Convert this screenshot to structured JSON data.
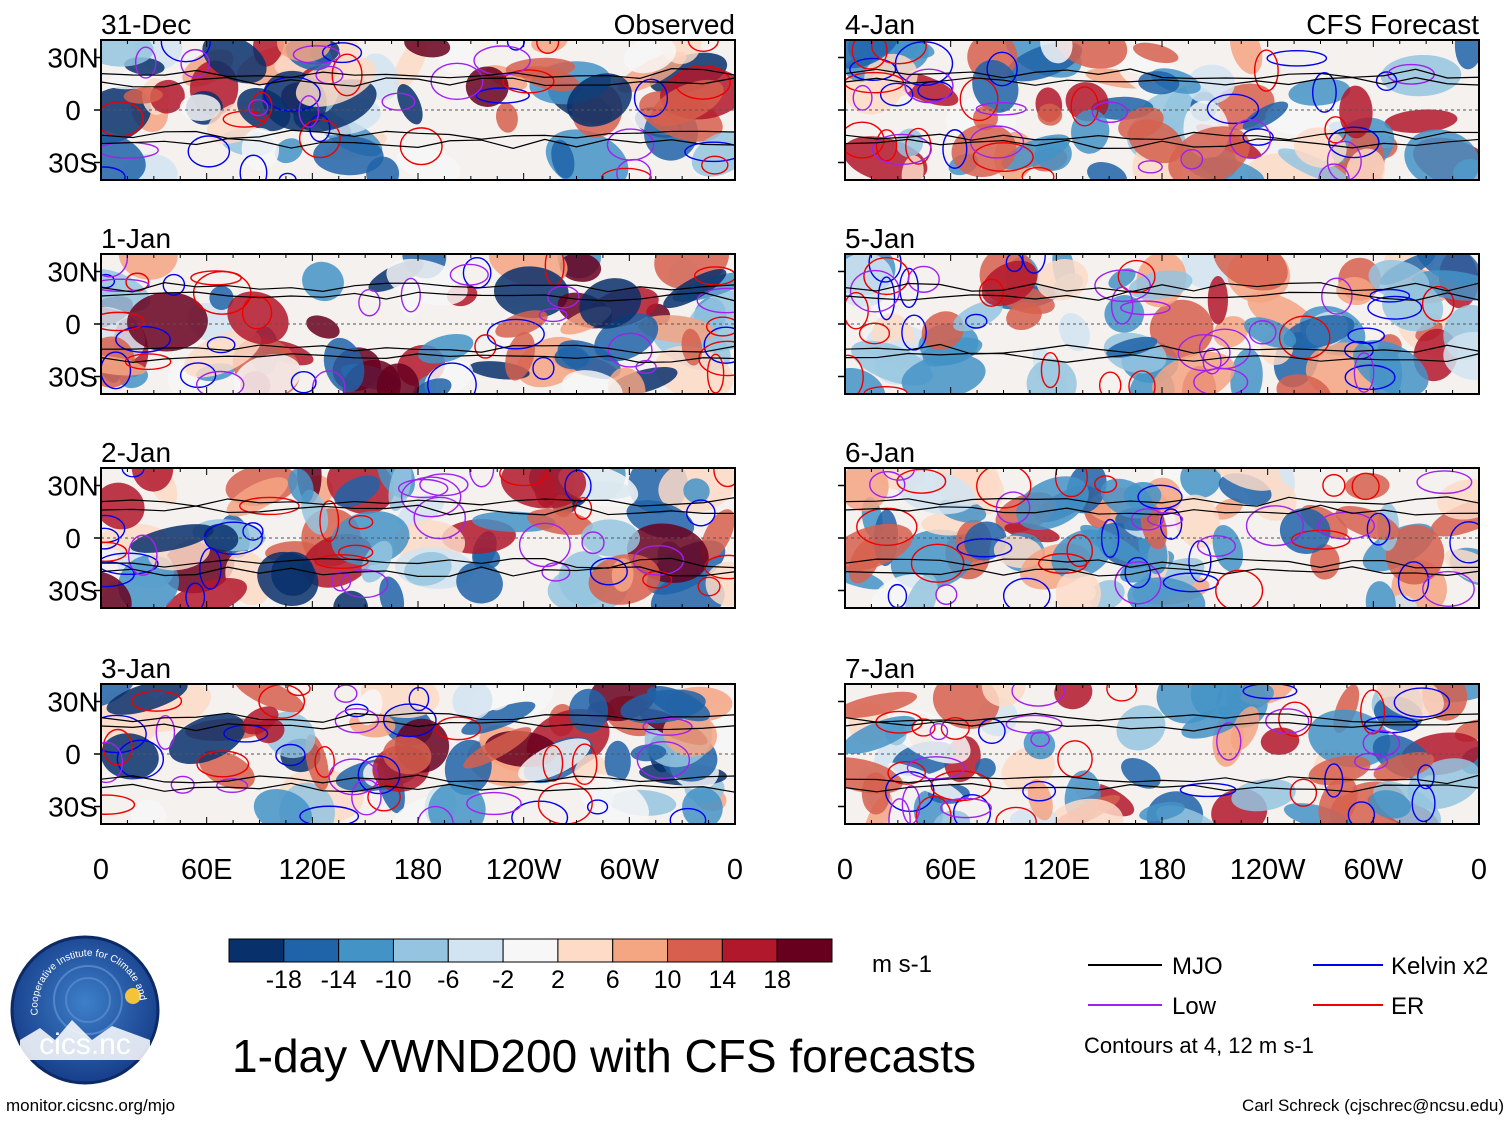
{
  "figure": {
    "title": "1-day VWND200 with CFS forecasts",
    "source_url": "monitor.cicsnc.org/mjo",
    "credit": "Carl Schreck (cjschrec@ncsu.edu)",
    "logo": {
      "text": "cics.nc",
      "ring_text": "Cooperative Institute for Climate and Satellites"
    }
  },
  "chart_data": {
    "type": "heatmap",
    "variable": "VWND200",
    "units": "m s-1",
    "columns": [
      {
        "label": "Observed",
        "panels": [
          "31-Dec",
          "1-Jan",
          "2-Jan",
          "3-Jan"
        ]
      },
      {
        "label": "CFS Forecast",
        "panels": [
          "4-Jan",
          "5-Jan",
          "6-Jan",
          "7-Jan"
        ]
      }
    ],
    "x_ticks": [
      "0",
      "60E",
      "120E",
      "180",
      "120W",
      "60W",
      "0"
    ],
    "y_ticks": [
      "30N",
      "0",
      "30S"
    ],
    "y_range_deg": [
      -40,
      40
    ],
    "colorbar": {
      "levels": [
        "-18",
        "-14",
        "-10",
        "-6",
        "-2",
        "2",
        "6",
        "10",
        "14",
        "18"
      ],
      "colors": [
        "#08306b",
        "#1f63a8",
        "#4493c7",
        "#94c4df",
        "#d2e4f1",
        "#f7f7f7",
        "#fddbc7",
        "#f4a582",
        "#d6604d",
        "#b2182b",
        "#67001f"
      ]
    },
    "legend": {
      "entries": [
        {
          "name": "MJO",
          "color": "#000000"
        },
        {
          "name": "Kelvin x2",
          "color": "#0000ee"
        },
        {
          "name": "Low",
          "color": "#a020f0"
        },
        {
          "name": "ER",
          "color": "#ee0000"
        }
      ],
      "note": "Contours at 4, 12 m s-1"
    }
  }
}
